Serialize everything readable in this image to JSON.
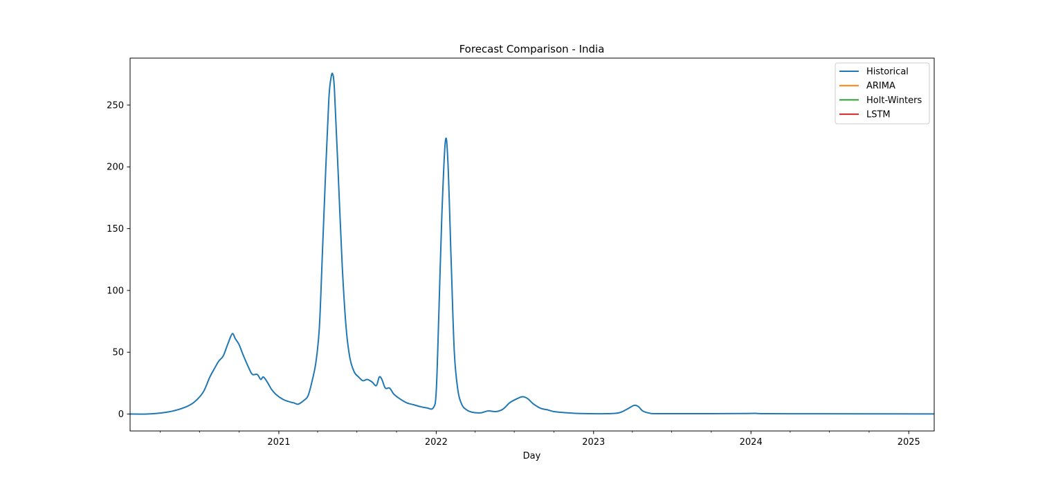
{
  "chart_data": {
    "type": "line",
    "title": "Forecast Comparison - India",
    "xlabel": "Day",
    "ylabel": "",
    "x_axis": "date",
    "xlim": [
      "2020-01-22",
      "2025-03-01"
    ],
    "ylim": [
      -13.7,
      288
    ],
    "x_ticks": [
      "2021-01-01",
      "2022-01-01",
      "2023-01-01",
      "2024-01-01",
      "2025-01-01"
    ],
    "x_tick_labels": [
      "2021",
      "2022",
      "2023",
      "2024",
      "2025"
    ],
    "y_ticks": [
      0,
      50,
      100,
      150,
      200,
      250
    ],
    "y_tick_labels": [
      "0",
      "50",
      "100",
      "150",
      "200",
      "250"
    ],
    "grid": false,
    "legend_position": "top-right",
    "series": [
      {
        "name": "Historical",
        "color": "#1f77b4",
        "points": [
          [
            "2020-01-22",
            0
          ],
          [
            "2020-03-01",
            0
          ],
          [
            "2020-04-01",
            0.8
          ],
          [
            "2020-05-01",
            2.5
          ],
          [
            "2020-06-01",
            6
          ],
          [
            "2020-06-20",
            10
          ],
          [
            "2020-07-10",
            18
          ],
          [
            "2020-07-25",
            30
          ],
          [
            "2020-08-05",
            37
          ],
          [
            "2020-08-15",
            43
          ],
          [
            "2020-08-25",
            47
          ],
          [
            "2020-09-05",
            57
          ],
          [
            "2020-09-15",
            65
          ],
          [
            "2020-09-22",
            61
          ],
          [
            "2020-10-01",
            56
          ],
          [
            "2020-10-10",
            48
          ],
          [
            "2020-10-25",
            36
          ],
          [
            "2020-11-01",
            32
          ],
          [
            "2020-11-12",
            32
          ],
          [
            "2020-11-20",
            28
          ],
          [
            "2020-11-26",
            30
          ],
          [
            "2020-12-05",
            26
          ],
          [
            "2020-12-15",
            20
          ],
          [
            "2020-12-25",
            16
          ],
          [
            "2021-01-10",
            12
          ],
          [
            "2021-01-25",
            10
          ],
          [
            "2021-02-05",
            9
          ],
          [
            "2021-02-15",
            8
          ],
          [
            "2021-02-28",
            11
          ],
          [
            "2021-03-10",
            15
          ],
          [
            "2021-03-20",
            28
          ],
          [
            "2021-03-28",
            42
          ],
          [
            "2021-04-05",
            70
          ],
          [
            "2021-04-12",
            130
          ],
          [
            "2021-04-20",
            200
          ],
          [
            "2021-04-27",
            255
          ],
          [
            "2021-05-02",
            272
          ],
          [
            "2021-05-06",
            275
          ],
          [
            "2021-05-10",
            262
          ],
          [
            "2021-05-18",
            200
          ],
          [
            "2021-05-28",
            120
          ],
          [
            "2021-06-06",
            70
          ],
          [
            "2021-06-15",
            45
          ],
          [
            "2021-06-25",
            34
          ],
          [
            "2021-07-05",
            30
          ],
          [
            "2021-07-15",
            27
          ],
          [
            "2021-07-25",
            28
          ],
          [
            "2021-08-05",
            26
          ],
          [
            "2021-08-15",
            23
          ],
          [
            "2021-08-22",
            30
          ],
          [
            "2021-08-28",
            28
          ],
          [
            "2021-09-05",
            21
          ],
          [
            "2021-09-15",
            21
          ],
          [
            "2021-09-25",
            16
          ],
          [
            "2021-10-10",
            12
          ],
          [
            "2021-10-25",
            9
          ],
          [
            "2021-11-10",
            7.5
          ],
          [
            "2021-11-25",
            6
          ],
          [
            "2021-12-10",
            5
          ],
          [
            "2021-12-25",
            5
          ],
          [
            "2022-01-01",
            18
          ],
          [
            "2022-01-07",
            80
          ],
          [
            "2022-01-14",
            160
          ],
          [
            "2022-01-22",
            220
          ],
          [
            "2022-01-28",
            205
          ],
          [
            "2022-02-05",
            120
          ],
          [
            "2022-02-12",
            50
          ],
          [
            "2022-02-20",
            20
          ],
          [
            "2022-03-01",
            8
          ],
          [
            "2022-03-12",
            3.5
          ],
          [
            "2022-03-25",
            1.5
          ],
          [
            "2022-04-15",
            1
          ],
          [
            "2022-05-01",
            2.5
          ],
          [
            "2022-05-20",
            2
          ],
          [
            "2022-06-05",
            4
          ],
          [
            "2022-06-20",
            9
          ],
          [
            "2022-07-05",
            12
          ],
          [
            "2022-07-20",
            14
          ],
          [
            "2022-08-01",
            12.5
          ],
          [
            "2022-08-15",
            8
          ],
          [
            "2022-09-01",
            4.5
          ],
          [
            "2022-09-15",
            3.5
          ],
          [
            "2022-10-01",
            2
          ],
          [
            "2022-11-01",
            1
          ],
          [
            "2022-12-01",
            0.4
          ],
          [
            "2023-02-01",
            0.3
          ],
          [
            "2023-03-01",
            1
          ],
          [
            "2023-03-20",
            4
          ],
          [
            "2023-04-05",
            7
          ],
          [
            "2023-04-15",
            6
          ],
          [
            "2023-04-25",
            2.5
          ],
          [
            "2023-05-10",
            0.8
          ],
          [
            "2023-06-01",
            0.3
          ],
          [
            "2023-10-01",
            0.3
          ],
          [
            "2023-12-15",
            0.4
          ],
          [
            "2024-01-10",
            0.6
          ],
          [
            "2024-02-01",
            0.3
          ],
          [
            "2024-06-01",
            0.2
          ],
          [
            "2025-03-01",
            0.1
          ]
        ]
      },
      {
        "name": "ARIMA",
        "color": "#ff7f0e",
        "points": []
      },
      {
        "name": "Holt-Winters",
        "color": "#2ca02c",
        "points": []
      },
      {
        "name": "LSTM",
        "color": "#d62728",
        "points": []
      }
    ]
  }
}
